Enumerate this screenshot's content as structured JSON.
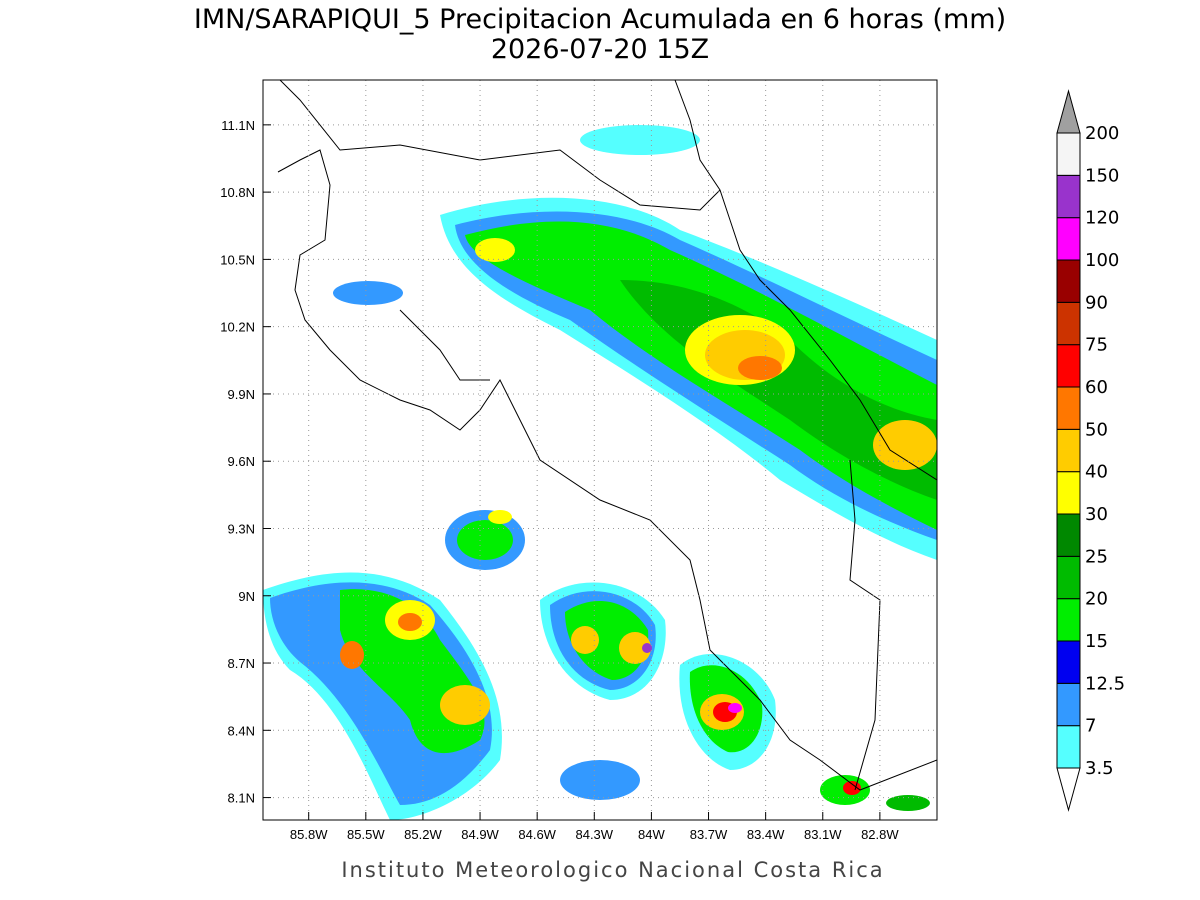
{
  "header": {
    "title": "IMN/SARAPIQUI_5 Precipitacion Acumulada en 6 horas (mm)",
    "subtitle": "2026-07-20 15Z"
  },
  "map": {
    "lon_range": [
      -86.04,
      -82.5
    ],
    "lat_range": [
      8.0,
      11.3
    ],
    "grid": true,
    "lon_ticks": [
      {
        "value": -85.8,
        "label": "85.8W"
      },
      {
        "value": -85.5,
        "label": "85.5W"
      },
      {
        "value": -85.2,
        "label": "85.2W"
      },
      {
        "value": -84.9,
        "label": "84.9W"
      },
      {
        "value": -84.6,
        "label": "84.6W"
      },
      {
        "value": -84.3,
        "label": "84.3W"
      },
      {
        "value": -84.0,
        "label": "84W"
      },
      {
        "value": -83.7,
        "label": "83.7W"
      },
      {
        "value": -83.4,
        "label": "83.4W"
      },
      {
        "value": -83.1,
        "label": "83.1W"
      },
      {
        "value": -82.8,
        "label": "82.8W"
      }
    ],
    "lat_ticks": [
      {
        "value": 8.1,
        "label": "8.1N"
      },
      {
        "value": 8.4,
        "label": "8.4N"
      },
      {
        "value": 8.7,
        "label": "8.7N"
      },
      {
        "value": 9.0,
        "label": "9N"
      },
      {
        "value": 9.3,
        "label": "9.3N"
      },
      {
        "value": 9.6,
        "label": "9.6N"
      },
      {
        "value": 9.9,
        "label": "9.9N"
      },
      {
        "value": 10.2,
        "label": "10.2N"
      },
      {
        "value": 10.5,
        "label": "10.5N"
      },
      {
        "value": 10.8,
        "label": "10.8N"
      },
      {
        "value": 11.1,
        "label": "11.1N"
      }
    ]
  },
  "colorbar": {
    "levels": [
      3.5,
      7,
      12.5,
      15,
      20,
      25,
      30,
      40,
      50,
      60,
      75,
      90,
      100,
      120,
      150,
      200
    ],
    "colors": [
      "#55ffff",
      "#3399ff",
      "#0000f0",
      "#00ee00",
      "#00bb00",
      "#008800",
      "#ffff00",
      "#ffcc00",
      "#ff7700",
      "#ff0000",
      "#cc3300",
      "#990000",
      "#ff00ff",
      "#9933cc",
      "#f5f5f5"
    ],
    "over_color": "#a0a0a0",
    "under_color": "#ffffff"
  },
  "footer": "Instituto Meteorologico Nacional Costa Rica"
}
